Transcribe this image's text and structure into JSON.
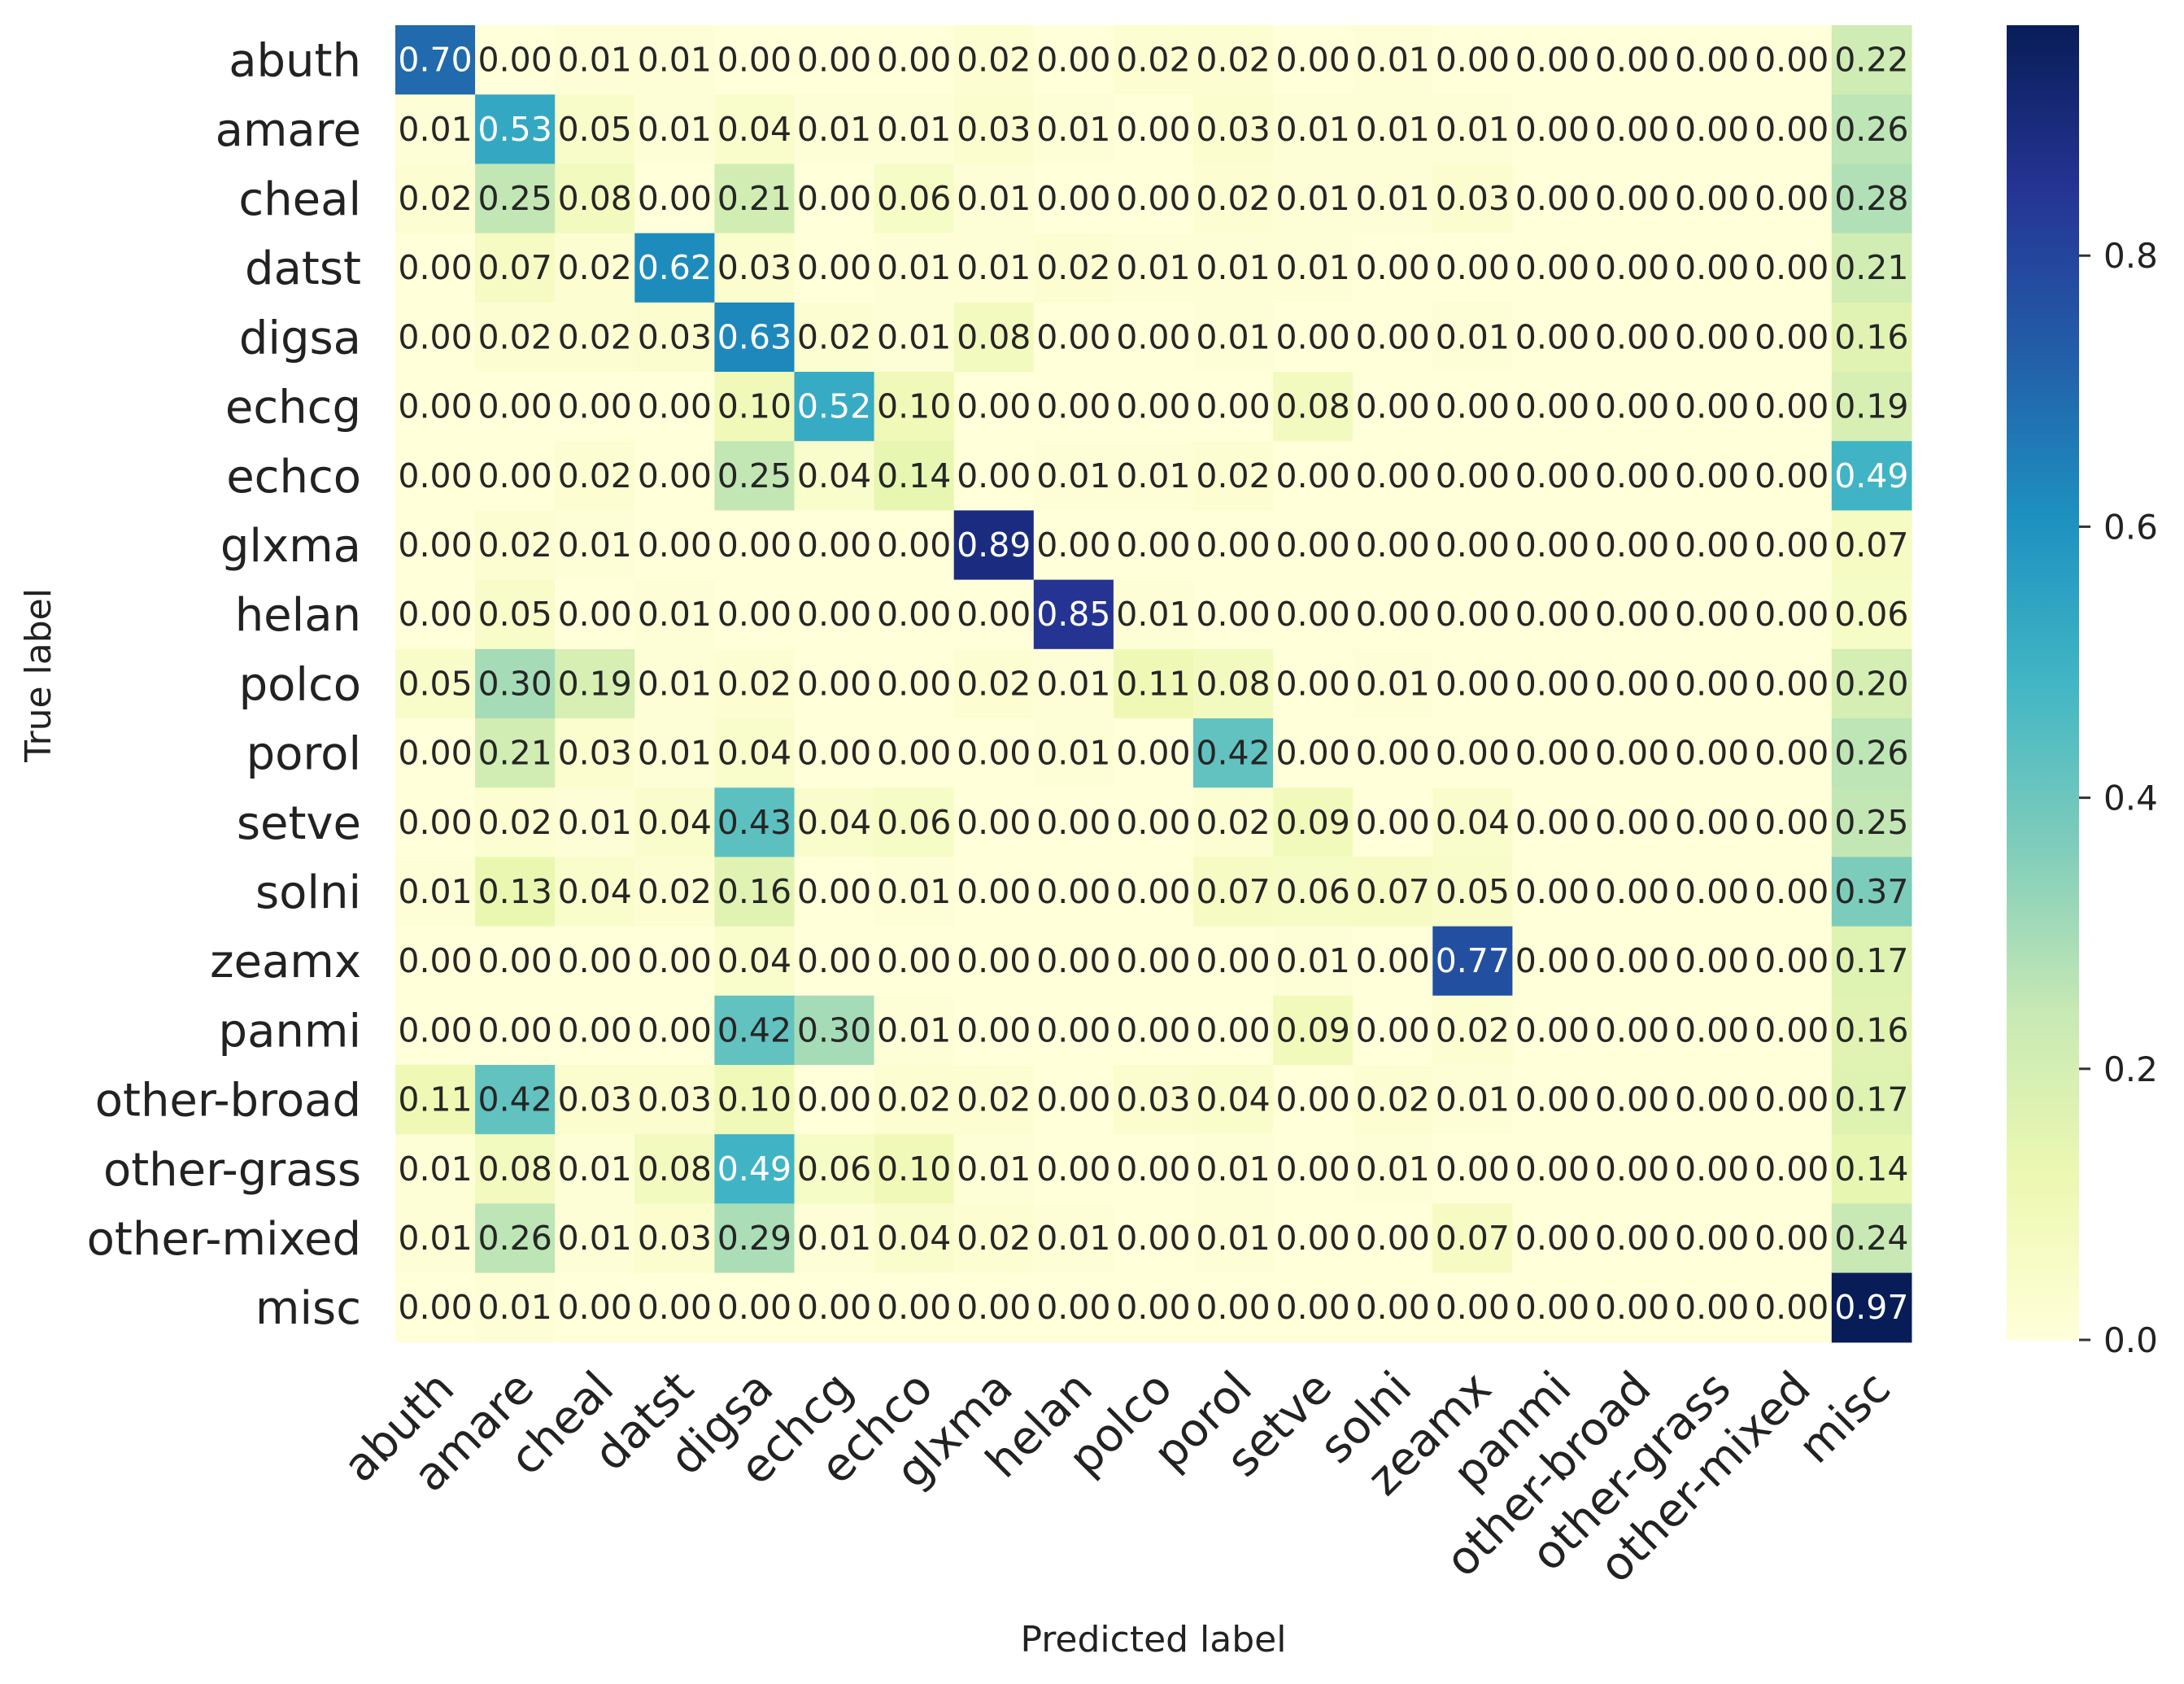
{
  "chart_data": {
    "type": "heatmap",
    "title": "",
    "xlabel": "Predicted label",
    "ylabel": "True label",
    "x_categories": [
      "abuth",
      "amare",
      "cheal",
      "datst",
      "digsa",
      "echcg",
      "echco",
      "glxma",
      "helan",
      "polco",
      "porol",
      "setve",
      "solni",
      "zeamx",
      "panmi",
      "other-broad",
      "other-grass",
      "other-mixed",
      "misc"
    ],
    "y_categories": [
      "abuth",
      "amare",
      "cheal",
      "datst",
      "digsa",
      "echcg",
      "echco",
      "glxma",
      "helan",
      "polco",
      "porol",
      "setve",
      "solni",
      "zeamx",
      "panmi",
      "other-broad",
      "other-grass",
      "other-mixed",
      "misc"
    ],
    "values": [
      [
        0.7,
        0.0,
        0.01,
        0.01,
        0.0,
        0.0,
        0.0,
        0.02,
        0.0,
        0.02,
        0.02,
        0.0,
        0.01,
        0.0,
        0.0,
        0.0,
        0.0,
        0.0,
        0.22
      ],
      [
        0.01,
        0.53,
        0.05,
        0.01,
        0.04,
        0.01,
        0.01,
        0.03,
        0.01,
        0.0,
        0.03,
        0.01,
        0.01,
        0.01,
        0.0,
        0.0,
        0.0,
        0.0,
        0.26
      ],
      [
        0.02,
        0.25,
        0.08,
        0.0,
        0.21,
        0.0,
        0.06,
        0.01,
        0.0,
        0.0,
        0.02,
        0.01,
        0.01,
        0.03,
        0.0,
        0.0,
        0.0,
        0.0,
        0.28
      ],
      [
        0.0,
        0.07,
        0.02,
        0.62,
        0.03,
        0.0,
        0.01,
        0.01,
        0.02,
        0.01,
        0.01,
        0.01,
        0.0,
        0.0,
        0.0,
        0.0,
        0.0,
        0.0,
        0.21
      ],
      [
        0.0,
        0.02,
        0.02,
        0.03,
        0.63,
        0.02,
        0.01,
        0.08,
        0.0,
        0.0,
        0.01,
        0.0,
        0.0,
        0.01,
        0.0,
        0.0,
        0.0,
        0.0,
        0.16
      ],
      [
        0.0,
        0.0,
        0.0,
        0.0,
        0.1,
        0.52,
        0.1,
        0.0,
        0.0,
        0.0,
        0.0,
        0.08,
        0.0,
        0.0,
        0.0,
        0.0,
        0.0,
        0.0,
        0.19
      ],
      [
        0.0,
        0.0,
        0.02,
        0.0,
        0.25,
        0.04,
        0.14,
        0.0,
        0.01,
        0.01,
        0.02,
        0.0,
        0.0,
        0.0,
        0.0,
        0.0,
        0.0,
        0.0,
        0.49
      ],
      [
        0.0,
        0.02,
        0.01,
        0.0,
        0.0,
        0.0,
        0.0,
        0.89,
        0.0,
        0.0,
        0.0,
        0.0,
        0.0,
        0.0,
        0.0,
        0.0,
        0.0,
        0.0,
        0.07
      ],
      [
        0.0,
        0.05,
        0.0,
        0.01,
        0.0,
        0.0,
        0.0,
        0.0,
        0.85,
        0.01,
        0.0,
        0.0,
        0.0,
        0.0,
        0.0,
        0.0,
        0.0,
        0.0,
        0.06
      ],
      [
        0.05,
        0.3,
        0.19,
        0.01,
        0.02,
        0.0,
        0.0,
        0.02,
        0.01,
        0.11,
        0.08,
        0.0,
        0.01,
        0.0,
        0.0,
        0.0,
        0.0,
        0.0,
        0.2
      ],
      [
        0.0,
        0.21,
        0.03,
        0.01,
        0.04,
        0.0,
        0.0,
        0.0,
        0.01,
        0.0,
        0.42,
        0.0,
        0.0,
        0.0,
        0.0,
        0.0,
        0.0,
        0.0,
        0.26
      ],
      [
        0.0,
        0.02,
        0.01,
        0.04,
        0.43,
        0.04,
        0.06,
        0.0,
        0.0,
        0.0,
        0.02,
        0.09,
        0.0,
        0.04,
        0.0,
        0.0,
        0.0,
        0.0,
        0.25
      ],
      [
        0.01,
        0.13,
        0.04,
        0.02,
        0.16,
        0.0,
        0.01,
        0.0,
        0.0,
        0.0,
        0.07,
        0.06,
        0.07,
        0.05,
        0.0,
        0.0,
        0.0,
        0.0,
        0.37
      ],
      [
        0.0,
        0.0,
        0.0,
        0.0,
        0.04,
        0.0,
        0.0,
        0.0,
        0.0,
        0.0,
        0.0,
        0.01,
        0.0,
        0.77,
        0.0,
        0.0,
        0.0,
        0.0,
        0.17
      ],
      [
        0.0,
        0.0,
        0.0,
        0.0,
        0.42,
        0.3,
        0.01,
        0.0,
        0.0,
        0.0,
        0.0,
        0.09,
        0.0,
        0.02,
        0.0,
        0.0,
        0.0,
        0.0,
        0.16
      ],
      [
        0.11,
        0.42,
        0.03,
        0.03,
        0.1,
        0.0,
        0.02,
        0.02,
        0.0,
        0.03,
        0.04,
        0.0,
        0.02,
        0.01,
        0.0,
        0.0,
        0.0,
        0.0,
        0.17
      ],
      [
        0.01,
        0.08,
        0.01,
        0.08,
        0.49,
        0.06,
        0.1,
        0.01,
        0.0,
        0.0,
        0.01,
        0.0,
        0.01,
        0.0,
        0.0,
        0.0,
        0.0,
        0.0,
        0.14
      ],
      [
        0.01,
        0.26,
        0.01,
        0.03,
        0.29,
        0.01,
        0.04,
        0.02,
        0.01,
        0.0,
        0.01,
        0.0,
        0.0,
        0.07,
        0.0,
        0.0,
        0.0,
        0.0,
        0.24
      ],
      [
        0.0,
        0.01,
        0.0,
        0.0,
        0.0,
        0.0,
        0.0,
        0.0,
        0.0,
        0.0,
        0.0,
        0.0,
        0.0,
        0.0,
        0.0,
        0.0,
        0.0,
        0.0,
        0.97
      ]
    ],
    "value_format": "0.00",
    "colormap": "YlGnBu",
    "colorbar": {
      "min": 0.0,
      "max": 0.97,
      "ticks": [
        0.0,
        0.2,
        0.4,
        0.6,
        0.8
      ],
      "tick_labels": [
        "0.0",
        "0.2",
        "0.4",
        "0.6",
        "0.8"
      ]
    },
    "colormap_stops": [
      "#ffffd9",
      "#edf8b1",
      "#c7e9b4",
      "#7fcdbb",
      "#41b6c4",
      "#1d91c0",
      "#225ea8",
      "#253494",
      "#081d58"
    ]
  }
}
